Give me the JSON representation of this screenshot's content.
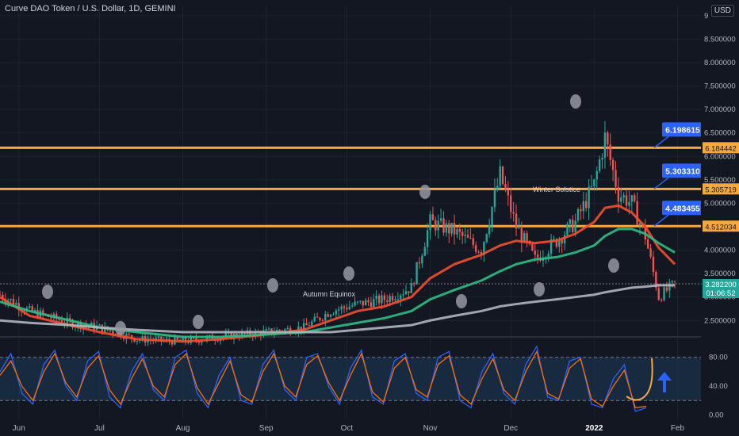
{
  "header": {
    "symbol_title": "Curve DAO Token / U.S. Dollar, 1D, GEMINI",
    "currency": "USD"
  },
  "colors": {
    "background": "#131722",
    "grid": "#1e222d",
    "up": "#26a69a",
    "down": "#ef5350",
    "level_line": "#f7a940",
    "callout": "#2962ff",
    "ma_fast": "#f44f2e",
    "ma_mid": "#2ebd85",
    "ma_slow": "#b2b5be",
    "stoch_k": "#2962ff",
    "stoch_d": "#ff6d00",
    "stoch_band": "#1c3a5a",
    "annotation": "#f7a940",
    "arrow": "#2962ff"
  },
  "chart_data": [
    {
      "type": "candlestick",
      "title": "Curve DAO Token / U.S. Dollar, 1D, GEMINI",
      "ylim": [
        2.2,
        9.2
      ],
      "y_ticks": [
        "2.500000",
        "3.000000",
        "3.500000",
        "4.000000",
        "4.500000",
        "5.000000",
        "5.500000",
        "6.000000",
        "6.500000",
        "7.000000",
        "7.500000",
        "8.000000",
        "8.500000",
        "9"
      ],
      "y_tick_values": [
        2.5,
        3.0,
        3.5,
        4.0,
        4.5,
        5.0,
        5.5,
        6.0,
        6.5,
        7.0,
        7.5,
        8.0,
        8.5,
        9.0
      ],
      "x_ticks": [
        "Jun",
        "Jul",
        "Aug",
        "Sep",
        "Oct",
        "Nov",
        "Dec",
        "2022",
        "Feb"
      ],
      "x_range": [
        "2021-05-25",
        "2022-02-10"
      ],
      "x_tick_dates": [
        "2021-06-01",
        "2021-07-01",
        "2021-08-01",
        "2021-09-01",
        "2021-10-01",
        "2021-11-01",
        "2021-12-01",
        "2022-01-01",
        "2022-02-01"
      ],
      "horizontal_levels": [
        {
          "price": 6.184442,
          "label": "6.184442",
          "callout": "6.198615"
        },
        {
          "price": 5.305719,
          "label": "5.305719",
          "callout": "5.303310"
        },
        {
          "price": 4.512034,
          "label": "4.512034",
          "callout": "4.483455"
        }
      ],
      "last_price": {
        "value": 3.2822,
        "label": "3.282200",
        "countdown": "01:06:52"
      },
      "annotations": [
        "Autumn Equinox",
        "Winter Solstice"
      ],
      "close_series": [
        {
          "date": "2021-05-25",
          "close": 3.05
        },
        {
          "date": "2021-06-05",
          "close": 2.7
        },
        {
          "date": "2021-06-20",
          "close": 2.45
        },
        {
          "date": "2021-07-01",
          "close": 2.35
        },
        {
          "date": "2021-07-15",
          "close": 2.1
        },
        {
          "date": "2021-08-01",
          "close": 2.05
        },
        {
          "date": "2021-08-15",
          "close": 2.15
        },
        {
          "date": "2021-09-01",
          "close": 2.25
        },
        {
          "date": "2021-09-15",
          "close": 2.35
        },
        {
          "date": "2021-09-25",
          "close": 2.7
        },
        {
          "date": "2021-10-05",
          "close": 2.85
        },
        {
          "date": "2021-10-15",
          "close": 2.95
        },
        {
          "date": "2021-10-25",
          "close": 3.2
        },
        {
          "date": "2021-11-01",
          "close": 4.6
        },
        {
          "date": "2021-11-10",
          "close": 4.4
        },
        {
          "date": "2021-11-20",
          "close": 4.0
        },
        {
          "date": "2021-11-27",
          "close": 5.6
        },
        {
          "date": "2021-12-03",
          "close": 4.5
        },
        {
          "date": "2021-12-10",
          "close": 3.8
        },
        {
          "date": "2021-12-18",
          "close": 4.2
        },
        {
          "date": "2021-12-25",
          "close": 4.6
        },
        {
          "date": "2022-01-01",
          "close": 5.4
        },
        {
          "date": "2022-01-05",
          "close": 6.4
        },
        {
          "date": "2022-01-10",
          "close": 5.2
        },
        {
          "date": "2022-01-15",
          "close": 5.0
        },
        {
          "date": "2022-01-20",
          "close": 4.3
        },
        {
          "date": "2022-01-25",
          "close": 3.0
        },
        {
          "date": "2022-01-31",
          "close": 3.28
        }
      ],
      "moving_averages": [
        {
          "color_key": "ma_fast",
          "points": [
            3.0,
            2.6,
            2.4,
            2.25,
            2.1,
            2.05,
            2.1,
            2.2,
            2.3,
            2.5,
            2.7,
            2.8,
            3.0,
            3.4,
            3.7,
            3.9,
            4.1,
            4.2,
            4.15,
            4.2,
            4.35,
            4.6,
            4.9,
            4.95,
            4.8,
            4.5,
            4.05,
            3.7
          ]
        },
        {
          "color_key": "ma_mid",
          "points": [
            2.9,
            2.7,
            2.5,
            2.35,
            2.25,
            2.15,
            2.15,
            2.2,
            2.25,
            2.35,
            2.45,
            2.55,
            2.7,
            2.95,
            3.15,
            3.35,
            3.55,
            3.7,
            3.8,
            3.85,
            3.95,
            4.1,
            4.3,
            4.45,
            4.45,
            4.35,
            4.15,
            3.95
          ]
        },
        {
          "color_key": "ma_slow",
          "points": [
            2.5,
            2.45,
            2.4,
            2.35,
            2.3,
            2.25,
            2.25,
            2.25,
            2.25,
            2.25,
            2.3,
            2.35,
            2.4,
            2.5,
            2.6,
            2.7,
            2.8,
            2.85,
            2.9,
            2.95,
            3.0,
            3.05,
            3.1,
            3.15,
            3.2,
            3.22,
            3.25,
            3.25
          ]
        }
      ]
    },
    {
      "type": "line",
      "title": "",
      "ylim": [
        -5,
        105
      ],
      "y_ticks": [
        "0.00",
        "40.00",
        "80.00"
      ],
      "y_tick_values": [
        0,
        40,
        80
      ],
      "band": [
        20,
        80
      ],
      "series": [
        {
          "values": [
            60,
            85,
            30,
            15,
            70,
            90,
            40,
            20,
            75,
            88,
            25,
            10,
            60,
            85,
            35,
            20,
            80,
            90,
            30,
            10,
            55,
            80,
            20,
            15,
            70,
            90,
            35,
            20,
            80,
            85,
            40,
            15,
            65,
            90,
            25,
            15,
            75,
            85,
            30,
            20,
            80,
            88,
            20,
            10,
            60,
            85,
            30,
            15,
            70,
            95,
            25,
            20,
            75,
            80,
            15,
            10,
            50,
            70,
            5,
            10
          ]
        },
        {
          "values": [
            55,
            75,
            40,
            20,
            60,
            85,
            45,
            25,
            65,
            82,
            35,
            15,
            50,
            78,
            40,
            25,
            70,
            85,
            38,
            15,
            45,
            75,
            28,
            18,
            60,
            85,
            40,
            25,
            70,
            82,
            45,
            20,
            55,
            85,
            32,
            18,
            65,
            80,
            35,
            25,
            70,
            82,
            28,
            15,
            50,
            78,
            35,
            20,
            60,
            88,
            30,
            22,
            65,
            78,
            22,
            12,
            40,
            62,
            10,
            12
          ]
        }
      ]
    }
  ]
}
